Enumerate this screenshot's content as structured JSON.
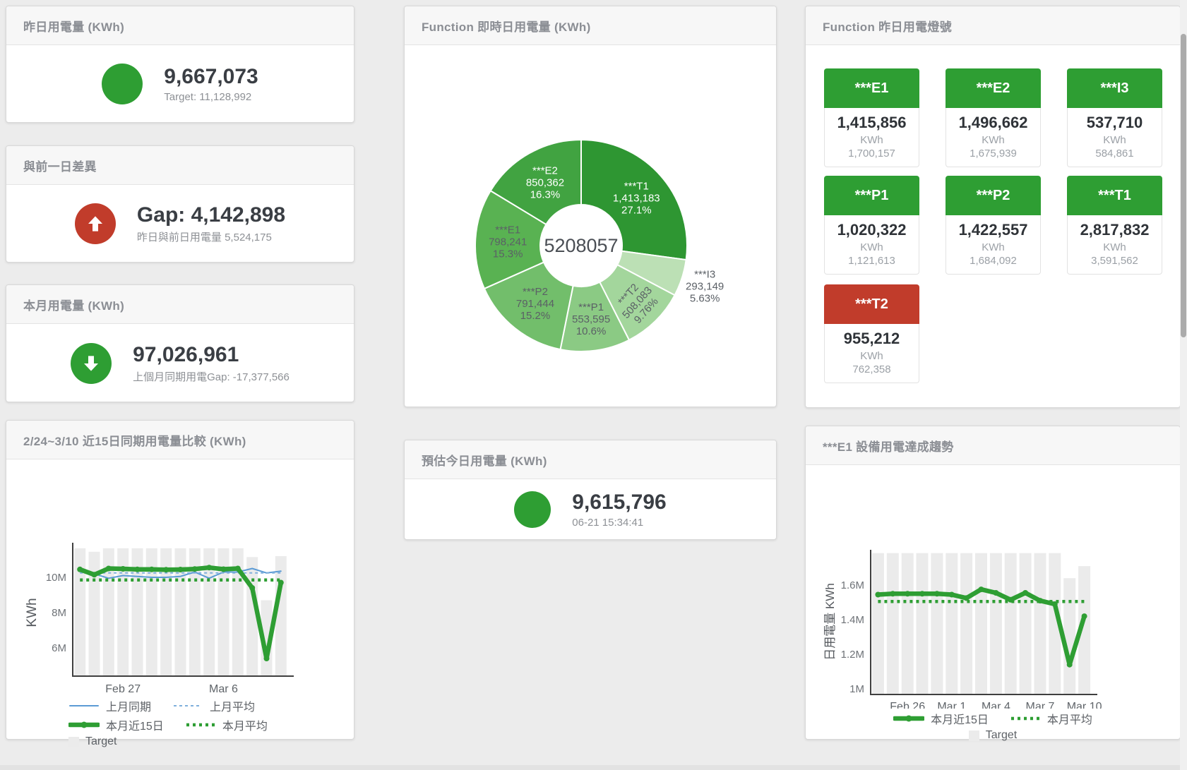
{
  "colors": {
    "green": "#2E9E33",
    "red": "#C13C2B",
    "blue": "#5B9BD5",
    "blue_light": "#7FAFDC",
    "bar_gray": "#EBEBEB",
    "axis": "#3F3F3F",
    "tick_text": "#6E7277",
    "title_text": "#8B8E94"
  },
  "cards": {
    "yesterday": {
      "title": "昨日用電量 (KWh)",
      "value": "9,667,073",
      "subtitle": "Target: 11,128,992",
      "indicator": "green-circle"
    },
    "day_gap": {
      "title": "與前一日差異",
      "value": "Gap: 4,142,898",
      "subtitle": "昨日與前日用電量 5,524,175",
      "indicator": "red-circle-up-arrow"
    },
    "month": {
      "title": "本月用電量 (KWh)",
      "value": "97,026,961",
      "subtitle": "上個月同期用電Gap: -17,377,566",
      "indicator": "green-circle-down-arrow"
    },
    "estimate": {
      "title": "預估今日用電量 (KWh)",
      "value": "9,615,796",
      "subtitle": "06-21 15:34:41",
      "indicator": "green-circle"
    },
    "realtime_donut": {
      "title": "Function 即時日用電量 (KWh)"
    },
    "lights": {
      "title": "Function 昨日用電燈號",
      "unit": "KWh",
      "tiles": [
        {
          "name": "***E1",
          "value": "1,415,856",
          "target": "1,700,157",
          "status": "green"
        },
        {
          "name": "***E2",
          "value": "1,496,662",
          "target": "1,675,939",
          "status": "green"
        },
        {
          "name": "***I3",
          "value": "537,710",
          "target": "584,861",
          "status": "green"
        },
        {
          "name": "***P1",
          "value": "1,020,322",
          "target": "1,121,613",
          "status": "green"
        },
        {
          "name": "***P2",
          "value": "1,422,557",
          "target": "1,684,092",
          "status": "green"
        },
        {
          "name": "***T1",
          "value": "2,817,832",
          "target": "3,591,562",
          "status": "green"
        },
        {
          "name": "***T2",
          "value": "955,212",
          "target": "762,358",
          "status": "red"
        }
      ]
    },
    "compare15": {
      "title": "2/24~3/10 近15日同期用電量比較 (KWh)"
    },
    "e1_trend": {
      "title": "***E1 設備用電達成趨勢"
    }
  },
  "chart_data": [
    {
      "id": "realtime-donut",
      "type": "pie",
      "title": "Function 即時日用電量 (KWh)",
      "center_label": "5208057",
      "unit": "KWh",
      "slices": [
        {
          "name": "***T1",
          "value": 1413183,
          "value_display": "1,413,183",
          "pct": "27.1%",
          "color": "#2E9632",
          "label_color": "#FFFFFF"
        },
        {
          "name": "***I3",
          "value": 293149,
          "value_display": "293,149",
          "pct": "5.63%",
          "color": "#BCE0B5",
          "label_color": "#5B6066",
          "outside": true
        },
        {
          "name": "***T2",
          "value": 508083,
          "value_display": "508,083",
          "pct": "9.76%",
          "color": "#A3D69C",
          "label_color": "#5B6066",
          "rotate": -48,
          "label_r": 112
        },
        {
          "name": "***P1",
          "value": 553595,
          "value_display": "553,595",
          "pct": "10.6%",
          "color": "#8BCA84",
          "label_color": "#5B6066"
        },
        {
          "name": "***P2",
          "value": 791444,
          "value_display": "791,444",
          "pct": "15.2%",
          "color": "#72BE6B",
          "label_color": "#5B6066"
        },
        {
          "name": "***E1",
          "value": 798241,
          "value_display": "798,241",
          "pct": "15.3%",
          "color": "#59B252",
          "label_color": "#5B6066"
        },
        {
          "name": "***E2",
          "value": 850362,
          "value_display": "850,362",
          "pct": "16.3%",
          "color": "#41A341",
          "label_color": "#FFFFFF"
        }
      ]
    },
    {
      "id": "compare-15d",
      "type": "line",
      "title": "2/24~3/10 近15日同期用電量比較 (KWh)",
      "ylabel": "KWh",
      "value_unit": "millions of KWh",
      "x_count": 15,
      "x_range": "Feb 24 - Mar 10",
      "xticks": [
        {
          "label": "Feb 27",
          "slot": 3
        },
        {
          "label": "Mar 6",
          "slot": 10
        }
      ],
      "yticks": [
        {
          "label": "6M",
          "value": 6
        },
        {
          "label": "8M",
          "value": 8
        },
        {
          "label": "10M",
          "value": 10
        }
      ],
      "ylim": [
        4.4,
        11.9
      ],
      "target_bars": [
        11.65,
        11.45,
        11.65,
        11.65,
        11.65,
        11.65,
        11.65,
        11.65,
        11.65,
        11.65,
        11.65,
        11.65,
        11.15,
        8.7,
        11.2
      ],
      "series": [
        {
          "name": "上月同期",
          "style": "blue-solid",
          "values": [
            10.5,
            10.2,
            9.95,
            10.1,
            10.05,
            10.0,
            10.0,
            10.05,
            10.3,
            9.95,
            10.3,
            10.3,
            10.5,
            10.25,
            10.35
          ]
        },
        {
          "name": "上月平均",
          "style": "blue-dashed",
          "constant": 10.25
        },
        {
          "name": "本月近15日",
          "style": "green-thick",
          "values": [
            10.45,
            10.15,
            10.5,
            10.48,
            10.45,
            10.45,
            10.43,
            10.44,
            10.47,
            10.55,
            10.46,
            10.5,
            9.4,
            5.4,
            9.7
          ]
        },
        {
          "name": "本月平均",
          "style": "green-dotted",
          "constant": 9.85
        }
      ],
      "legend_rows": [
        [
          "上月同期",
          "上月平均"
        ],
        [
          "本月近15日",
          "本月平均"
        ],
        [
          "Target"
        ]
      ]
    },
    {
      "id": "e1-trend",
      "type": "line",
      "title": "***E1 設備用電達成趨勢",
      "ylabel": "日用電量 KWh",
      "value_unit": "millions of KWh",
      "x_count": 15,
      "xticks": [
        {
          "label": "Feb 26",
          "slot": 2
        },
        {
          "label": "Mar 1",
          "slot": 5
        },
        {
          "label": "Mar 4",
          "slot": 8
        },
        {
          "label": "Mar 7",
          "slot": 11
        },
        {
          "label": "Mar 10",
          "slot": 14
        }
      ],
      "yticks": [
        {
          "label": "1M",
          "value": 1.0
        },
        {
          "label": "1.2M",
          "value": 1.2
        },
        {
          "label": "1.4M",
          "value": 1.4
        },
        {
          "label": "1.6M",
          "value": 1.6
        }
      ],
      "ylim": [
        0.97,
        1.79
      ],
      "target_bars": [
        1.785,
        1.785,
        1.785,
        1.785,
        1.785,
        1.785,
        1.785,
        1.785,
        1.785,
        1.785,
        1.785,
        1.785,
        1.785,
        1.64,
        1.71
      ],
      "series": [
        {
          "name": "本月近15日",
          "style": "green-thick",
          "values": [
            1.545,
            1.55,
            1.55,
            1.55,
            1.55,
            1.545,
            1.525,
            1.575,
            1.555,
            1.515,
            1.555,
            1.51,
            1.49,
            1.14,
            1.42
          ]
        },
        {
          "name": "本月平均",
          "style": "green-dotted",
          "constant": 1.505
        }
      ],
      "legend_rows": [
        [
          "本月近15日",
          "本月平均"
        ],
        [
          "Target"
        ]
      ]
    }
  ]
}
